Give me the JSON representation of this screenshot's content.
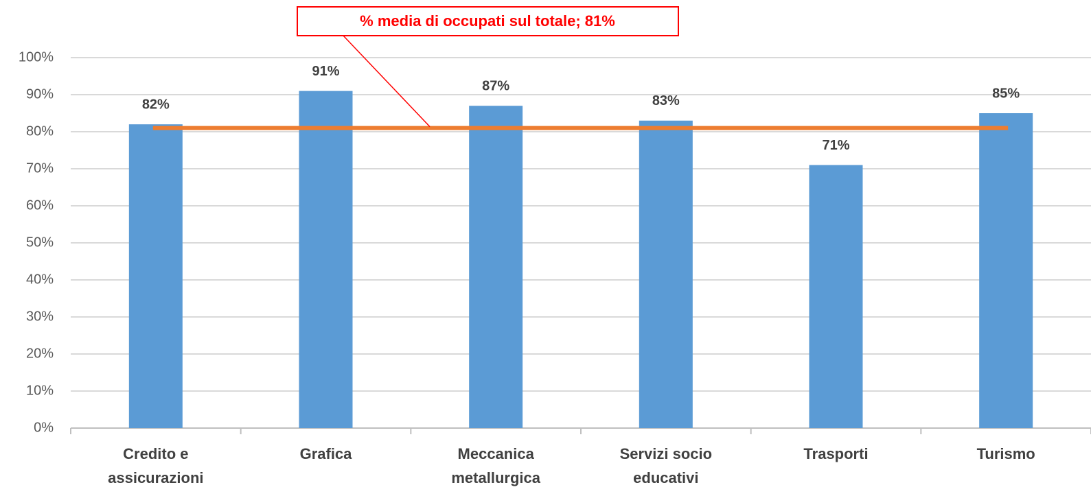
{
  "chart_data": {
    "type": "bar",
    "categories": [
      "Credito e\nassicurazioni",
      "Grafica",
      "Meccanica\nmetallurgica",
      "Servizi socio\neducativi",
      "Trasporti",
      "Turismo"
    ],
    "values": [
      82,
      91,
      87,
      83,
      71,
      85
    ],
    "value_labels": [
      "82%",
      "91%",
      "87%",
      "83%",
      "71%",
      "85%"
    ],
    "color": "#5b9bd5",
    "ylim": [
      0,
      100
    ],
    "yticks": [
      {
        "value": 0,
        "label": "0%"
      },
      {
        "value": 10,
        "label": "10%"
      },
      {
        "value": 20,
        "label": "20%"
      },
      {
        "value": 30,
        "label": "30%"
      },
      {
        "value": 40,
        "label": "40%"
      },
      {
        "value": 50,
        "label": "50%"
      },
      {
        "value": 60,
        "label": "60%"
      },
      {
        "value": 70,
        "label": "70%"
      },
      {
        "value": 80,
        "label": "80%"
      },
      {
        "value": 90,
        "label": "90%"
      },
      {
        "value": 100,
        "label": "100%"
      }
    ],
    "grid": true,
    "reference_line": {
      "value": 81,
      "label": "% media di occupati sul totale; 81%",
      "color": "#ed7d31",
      "label_color": "#ff0000"
    }
  }
}
